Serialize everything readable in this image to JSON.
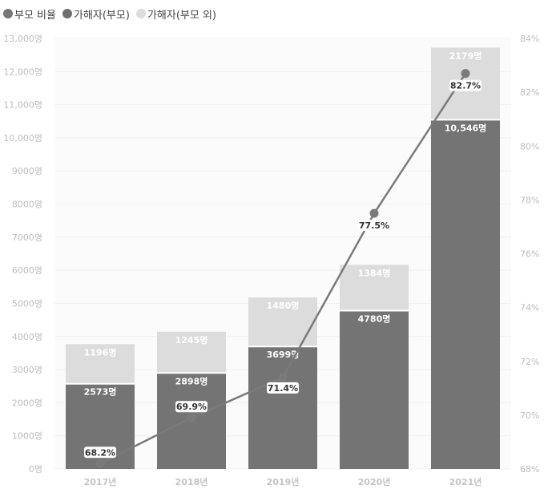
{
  "legend": [
    {
      "label": "부모 비율",
      "color": "#777777"
    },
    {
      "label": "가해자(부모)",
      "color": "#6f6f6f"
    },
    {
      "label": "가해자(부모 외)",
      "color": "#dddddd"
    }
  ],
  "chart_data": {
    "type": "bar",
    "stacked": true,
    "categories": [
      "2017년",
      "2018년",
      "2019년",
      "2020년",
      "2021년"
    ],
    "series": [
      {
        "name": "가해자(부모)",
        "values": [
          2573,
          2898,
          3699,
          4780,
          10546
        ],
        "labels": [
          "2573명",
          "2898명",
          "3699명",
          "4780명",
          "10,546명"
        ],
        "color": "#747474"
      },
      {
        "name": "가해자(부모 외)",
        "values": [
          1196,
          1245,
          1480,
          1384,
          2179
        ],
        "labels": [
          "1196명",
          "1245명",
          "1480명",
          "1384명",
          "2179명"
        ],
        "color": "#dcdcdc"
      }
    ],
    "line_series": {
      "name": "부모 비율",
      "axis": "right",
      "values": [
        68.2,
        69.9,
        71.4,
        77.5,
        82.7
      ],
      "labels": [
        "68.2%",
        "69.9%",
        "71.4%",
        "77.5%",
        "82.7%"
      ],
      "color": "#7a7a7a"
    },
    "y_left": {
      "range": [
        0,
        13000
      ],
      "ticks": [
        0,
        1000,
        2000,
        3000,
        4000,
        5000,
        6000,
        7000,
        8000,
        9000,
        10000,
        11000,
        12000,
        13000
      ],
      "tick_labels": [
        "0명",
        "1000명",
        "2000명",
        "3000명",
        "4000명",
        "5000명",
        "6000명",
        "7000명",
        "8000명",
        "9000명",
        "10,000명",
        "11,000명",
        "12,000명",
        "13,000명"
      ]
    },
    "y_right": {
      "range": [
        68,
        84
      ],
      "ticks": [
        68,
        70,
        72,
        74,
        76,
        78,
        80,
        82,
        84
      ],
      "tick_labels": [
        "68%",
        "70%",
        "72%",
        "74%",
        "76%",
        "78%",
        "80%",
        "82%",
        "84%"
      ]
    },
    "grid": true,
    "legend_position": "top-left"
  }
}
